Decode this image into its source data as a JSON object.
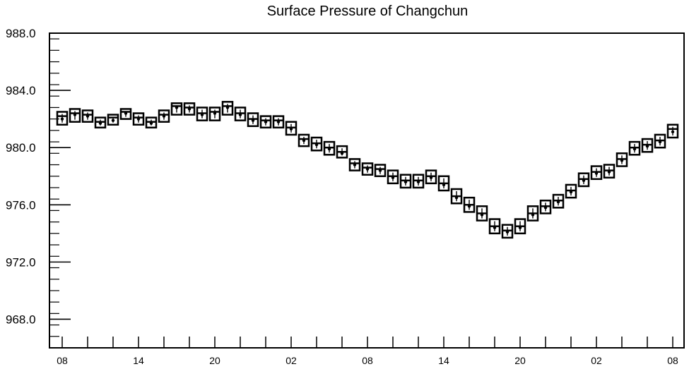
{
  "chart_data": {
    "type": "box",
    "title": "Surface Pressure of Changchun",
    "xlabel": "",
    "ylabel": "",
    "ylim": [
      966.0,
      988.0
    ],
    "y_ticks": [
      968.0,
      972.0,
      976.0,
      980.0,
      984.0,
      988.0
    ],
    "y_tick_labels": [
      "968.0",
      "972.0",
      "976.0",
      "980.0",
      "984.0",
      "988.0"
    ],
    "x_ticks_hours": [
      0,
      6,
      12,
      18,
      24,
      30,
      36,
      42,
      48
    ],
    "x_tick_labels": [
      "08",
      "14",
      "20",
      "02",
      "08",
      "14",
      "20",
      "02",
      "08"
    ],
    "x_step_hours": 1,
    "grid": false,
    "series": [
      {
        "box_high": [
          982.5,
          982.7,
          982.6,
          982.1,
          982.3,
          982.7,
          982.4,
          982.1,
          982.6,
          983.1,
          983.1,
          982.8,
          982.8,
          983.2,
          982.8,
          982.4,
          982.2,
          982.2,
          981.8,
          980.9,
          980.7,
          980.4,
          980.1,
          979.2,
          978.9,
          978.8,
          978.4,
          978.1,
          978.1,
          978.4,
          978.0,
          977.1,
          976.5,
          975.9,
          975.0,
          974.6,
          975.0,
          975.9,
          976.3,
          976.7,
          977.4,
          978.2,
          978.7,
          978.8,
          979.6,
          980.4,
          980.6,
          980.9,
          981.6
        ],
        "box_low": [
          981.6,
          981.8,
          981.8,
          981.4,
          981.6,
          982.0,
          981.6,
          981.4,
          981.8,
          982.3,
          982.3,
          981.9,
          981.9,
          982.3,
          981.9,
          981.5,
          981.4,
          981.4,
          980.9,
          980.1,
          979.8,
          979.5,
          979.3,
          978.4,
          978.1,
          978.0,
          977.5,
          977.2,
          977.2,
          977.5,
          977.0,
          976.1,
          975.5,
          974.9,
          974.0,
          973.7,
          974.0,
          974.9,
          975.4,
          975.8,
          976.5,
          977.3,
          977.8,
          977.9,
          978.7,
          979.5,
          979.7,
          980.0,
          980.7
        ],
        "mean": [
          982.0,
          982.3,
          982.2,
          981.7,
          981.9,
          982.4,
          982.0,
          981.7,
          982.2,
          982.8,
          982.7,
          982.3,
          982.4,
          982.8,
          982.3,
          981.9,
          981.8,
          981.8,
          981.3,
          980.5,
          980.2,
          979.9,
          979.6,
          978.8,
          978.5,
          978.4,
          977.9,
          977.6,
          977.6,
          977.9,
          977.4,
          976.5,
          975.9,
          975.3,
          974.4,
          974.1,
          974.4,
          975.3,
          975.8,
          976.2,
          976.9,
          977.7,
          978.2,
          978.3,
          979.1,
          979.9,
          980.1,
          980.4,
          981.1
        ],
        "median": [
          982.2,
          982.4,
          982.3,
          981.8,
          982.1,
          982.5,
          982.1,
          981.8,
          982.3,
          982.9,
          982.8,
          982.4,
          982.5,
          982.9,
          982.4,
          982.0,
          981.9,
          981.9,
          981.4,
          980.6,
          980.3,
          980.0,
          979.7,
          978.9,
          978.6,
          978.5,
          978.0,
          977.7,
          977.7,
          978.0,
          977.5,
          976.6,
          976.0,
          975.4,
          974.5,
          974.2,
          974.5,
          975.4,
          975.9,
          976.3,
          977.0,
          977.8,
          978.3,
          978.4,
          979.2,
          980.0,
          980.2,
          980.5,
          981.3
        ]
      }
    ]
  }
}
